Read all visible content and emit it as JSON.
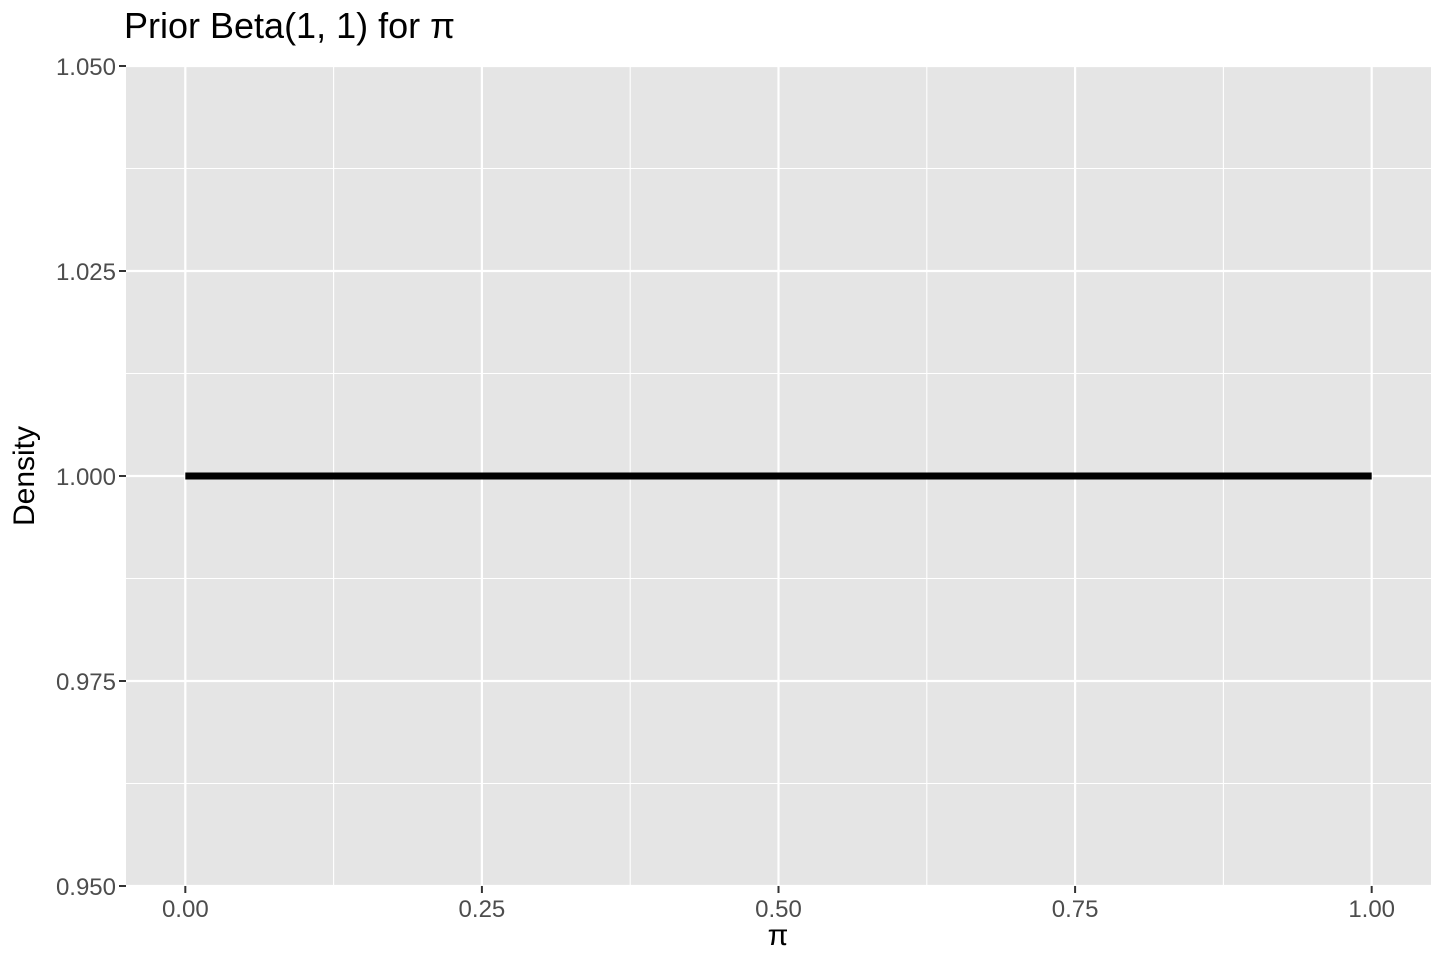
{
  "chart_data": {
    "type": "line",
    "title": "Prior Beta(1, 1) for π",
    "xlabel": "π",
    "ylabel": "Density",
    "xlim": [
      -0.05,
      1.05
    ],
    "ylim": [
      0.95,
      1.05
    ],
    "x_ticks": [
      0,
      0.25,
      0.5,
      0.75,
      1
    ],
    "x_tick_labels": [
      "0.00",
      "0.25",
      "0.50",
      "0.75",
      "1.00"
    ],
    "y_ticks": [
      0.95,
      0.975,
      1.0,
      1.025,
      1.05
    ],
    "y_tick_labels": [
      "0.950",
      "0.975",
      "1.000",
      "1.025",
      "1.050"
    ],
    "x_minor_ticks": [
      0.125,
      0.375,
      0.625,
      0.875
    ],
    "y_minor_ticks": [
      0.9625,
      0.9875,
      1.0125,
      1.0375
    ],
    "grid": true,
    "legend": "none",
    "colors": {
      "panel_background": "#e5e5e5",
      "grid": "#ffffff",
      "line": "#000000",
      "tick_text": "#4d4d4d"
    },
    "series": [
      {
        "x": [
          0,
          0.1,
          0.2,
          0.3,
          0.4,
          0.5,
          0.6,
          0.7,
          0.8,
          0.9,
          1
        ],
        "y": [
          1,
          1,
          1,
          1,
          1,
          1,
          1,
          1,
          1,
          1,
          1
        ]
      }
    ]
  }
}
